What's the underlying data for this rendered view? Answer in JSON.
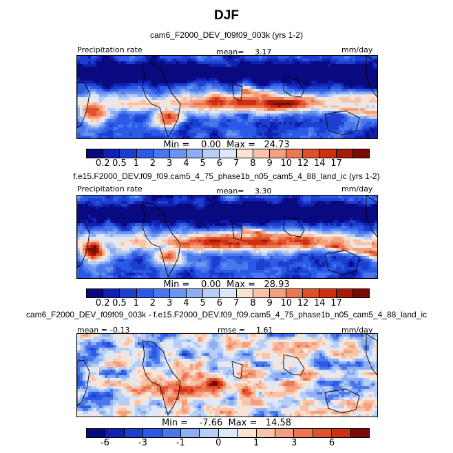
{
  "figure_title": "DJF",
  "chart_data": [
    {
      "type": "heatmap",
      "title": "cam6_F2000_DEV_f09f09_003k (yrs 1-2)",
      "field_label": "Precipitation rate",
      "mean_label": "mean=",
      "mean_value": "3.17",
      "units": "mm/day",
      "min_label": "Min =",
      "min_value": "0.00",
      "max_label": "Max =",
      "max_value": "24.73",
      "colorbar_levels": [
        "0.2",
        "0.5",
        "1",
        "2",
        "3",
        "4",
        "5",
        "6",
        "7",
        "8",
        "9",
        "10",
        "12",
        "14",
        "17"
      ],
      "colors": [
        "#0a0a80",
        "#1020b0",
        "#1c3fd0",
        "#2a5ae6",
        "#4a78ec",
        "#6b94f0",
        "#8eaef2",
        "#b6cdf6",
        "#dde8fa",
        "#fbe3d4",
        "#f8c3a8",
        "#f3a07e",
        "#ec7650",
        "#e0502b",
        "#cc3010",
        "#a81a08",
        "#7a0a04"
      ]
    },
    {
      "type": "heatmap",
      "title": "f.e15.F2000_DEV.f09_f09.cam5_4_75_phase1b_n05_cam5_4_88_land_ic (yrs 1-2)",
      "field_label": "Precipitation rate",
      "mean_label": "mean=",
      "mean_value": "3.30",
      "units": "mm/day",
      "min_label": "Min =",
      "min_value": "0.00",
      "max_label": "Max =",
      "max_value": "28.93",
      "colorbar_levels": [
        "0.2",
        "0.5",
        "1",
        "2",
        "3",
        "4",
        "5",
        "6",
        "7",
        "8",
        "9",
        "10",
        "12",
        "14",
        "17"
      ],
      "colors": [
        "#0a0a80",
        "#1020b0",
        "#1c3fd0",
        "#2a5ae6",
        "#4a78ec",
        "#6b94f0",
        "#8eaef2",
        "#b6cdf6",
        "#dde8fa",
        "#fbe3d4",
        "#f8c3a8",
        "#f3a07e",
        "#ec7650",
        "#e0502b",
        "#cc3010",
        "#a81a08",
        "#7a0a04"
      ]
    },
    {
      "type": "heatmap",
      "title": "cam6_F2000_DEV_f09f09_003k - f.e15.F2000_DEV.f09_f09.cam5_4_75_phase1b_n05_cam5_4_88_land_ic",
      "mean_label": "mean =",
      "mean_value": "-0.13",
      "rmse_label": "rmse =",
      "rmse_value": "1.61",
      "units": "mm/day",
      "min_label": "Min =",
      "min_value": "-7.66",
      "max_label": "Max =",
      "max_value": "14.58",
      "colorbar_levels": [
        "-6",
        "-3",
        "-1",
        "0",
        "1",
        "3",
        "6"
      ],
      "colorbar_tick_boundaries": [
        1,
        3,
        5,
        7,
        9,
        11,
        13
      ],
      "colors": [
        "#0a0a80",
        "#1020b0",
        "#1c3fd0",
        "#2a5ae6",
        "#4a78ec",
        "#8eaef2",
        "#b6cdf6",
        "#dde8fa",
        "#fbe3d4",
        "#f8c3a8",
        "#f3a07e",
        "#ec7650",
        "#e0502b",
        "#cc3010",
        "#7a0a04"
      ]
    }
  ]
}
